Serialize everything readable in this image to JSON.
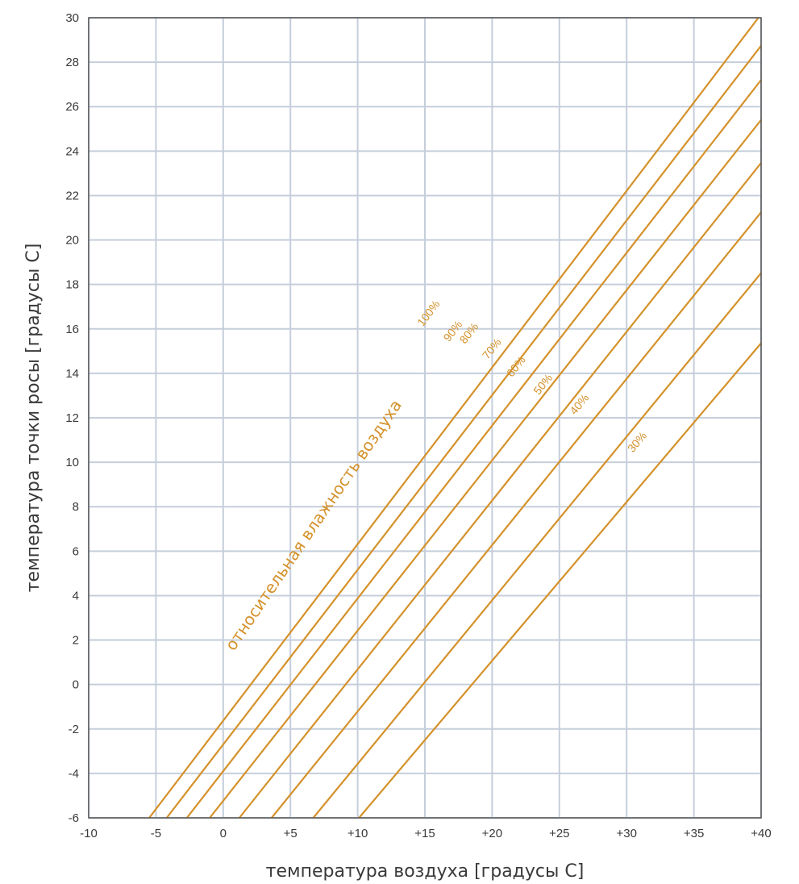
{
  "chart_data": {
    "type": "line",
    "title": "",
    "xlabel": "температура воздуха [градусы C]",
    "ylabel": "температура точки росы [градусы C]",
    "xlim": [
      -10,
      40
    ],
    "ylim": [
      -6,
      30
    ],
    "x_ticks": [
      {
        "value": -10,
        "label": "-10"
      },
      {
        "value": -5,
        "label": "-5"
      },
      {
        "value": 0,
        "label": "0"
      },
      {
        "value": 5,
        "label": "+5"
      },
      {
        "value": 10,
        "label": "+10"
      },
      {
        "value": 15,
        "label": "+15"
      },
      {
        "value": 20,
        "label": "+20"
      },
      {
        "value": 25,
        "label": "+25"
      },
      {
        "value": 30,
        "label": "+30"
      },
      {
        "value": 35,
        "label": "+35"
      },
      {
        "value": 40,
        "label": "+40"
      }
    ],
    "y_ticks": [
      {
        "value": -6,
        "label": "-6"
      },
      {
        "value": -4,
        "label": "-4"
      },
      {
        "value": -2,
        "label": "-2"
      },
      {
        "value": 0,
        "label": "0"
      },
      {
        "value": 2,
        "label": "2"
      },
      {
        "value": 4,
        "label": "4"
      },
      {
        "value": 6,
        "label": "6"
      },
      {
        "value": 8,
        "label": "8"
      },
      {
        "value": 10,
        "label": "10"
      },
      {
        "value": 12,
        "label": "12"
      },
      {
        "value": 14,
        "label": "14"
      },
      {
        "value": 16,
        "label": "16"
      },
      {
        "value": 18,
        "label": "18"
      },
      {
        "value": 20,
        "label": "20"
      },
      {
        "value": 22,
        "label": "22"
      },
      {
        "value": 24,
        "label": "24"
      },
      {
        "value": 26,
        "label": "26"
      },
      {
        "value": 28,
        "label": "28"
      },
      {
        "value": 30,
        "label": "30"
      }
    ],
    "grid": true,
    "annotation": "относительная влажность воздуха",
    "line_color": "#d4912a",
    "series": [
      {
        "name": "100%",
        "label_at": [
          15.5,
          16.6
        ],
        "points": [
          [
            -5.5,
            -6
          ],
          [
            39.8,
            30
          ]
        ]
      },
      {
        "name": "90%",
        "label_at": [
          17.3,
          15.8
        ],
        "points": [
          [
            -4.2,
            -6
          ],
          [
            41.6,
            30
          ]
        ]
      },
      {
        "name": "80%",
        "label_at": [
          18.5,
          15.7
        ],
        "points": [
          [
            -2.7,
            -6
          ],
          [
            43.6,
            30
          ]
        ]
      },
      {
        "name": "70%",
        "label_at": [
          20.2,
          15.0
        ],
        "points": [
          [
            -1.0,
            -6
          ],
          [
            46.0,
            30
          ]
        ]
      },
      {
        "name": "60%",
        "label_at": [
          22.0,
          14.2
        ],
        "points": [
          [
            1.2,
            -6
          ],
          [
            48.6,
            30
          ]
        ]
      },
      {
        "name": "50%",
        "label_at": [
          24.0,
          13.4
        ],
        "points": [
          [
            3.6,
            -6
          ],
          [
            51.7,
            30
          ]
        ]
      },
      {
        "name": "40%",
        "label_at": [
          26.7,
          12.5
        ],
        "points": [
          [
            6.7,
            -6
          ],
          [
            55.6,
            30
          ]
        ]
      },
      {
        "name": "30%",
        "label_at": [
          31.0,
          10.8
        ],
        "points": [
          [
            10.1,
            -6
          ],
          [
            60.5,
            30
          ]
        ]
      }
    ]
  }
}
